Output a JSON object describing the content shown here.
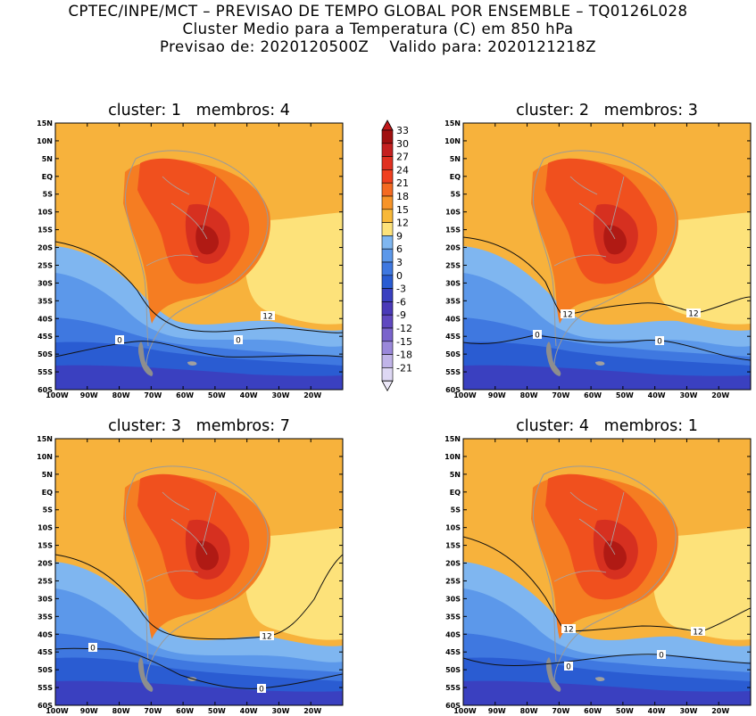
{
  "header": {
    "line1": "CPTEC/INPE/MCT – PREVISAO DE TEMPO GLOBAL POR ENSEMBLE – TQ0126L028",
    "line2": "Cluster Medio para a Temperatura (C) em 850 hPa",
    "line3_prefix": "Previsao de:",
    "line3_forecast": "2020120500Z",
    "line3_valid_prefix": "Valido para:",
    "line3_valid": "2020121218Z"
  },
  "panels": [
    {
      "cluster_label": "cluster:",
      "cluster": "1",
      "members_label": "membros:",
      "members": "4",
      "contour_labels": [
        "12",
        "0",
        "0"
      ]
    },
    {
      "cluster_label": "cluster:",
      "cluster": "2",
      "members_label": "membros:",
      "members": "3",
      "contour_labels": [
        "12",
        "12",
        "0",
        "0"
      ]
    },
    {
      "cluster_label": "cluster:",
      "cluster": "3",
      "members_label": "membros:",
      "members": "7",
      "contour_labels": [
        "12",
        "0",
        "0"
      ]
    },
    {
      "cluster_label": "cluster:",
      "cluster": "4",
      "members_label": "membros:",
      "members": "1",
      "contour_labels": [
        "12",
        "12",
        "0",
        "0"
      ]
    }
  ],
  "axes": {
    "lat_ticks": [
      "15N",
      "10N",
      "5N",
      "EQ",
      "5S",
      "10S",
      "15S",
      "20S",
      "25S",
      "30S",
      "35S",
      "40S",
      "45S",
      "50S",
      "55S",
      "60S"
    ],
    "lon_ticks": [
      "100W",
      "90W",
      "80W",
      "70W",
      "60W",
      "50W",
      "40W",
      "30W",
      "20W"
    ]
  },
  "colorbar": {
    "labels": [
      "33",
      "30",
      "27",
      "24",
      "21",
      "18",
      "15",
      "12",
      "9",
      "6",
      "3",
      "0",
      "-3",
      "-6",
      "-9",
      "-12",
      "-15",
      "-18",
      "-21"
    ],
    "colors": [
      "#a01010",
      "#c42020",
      "#e03020",
      "#f04020",
      "#f46a22",
      "#f79428",
      "#f8b838",
      "#fde27a",
      "#7fb6f0",
      "#5c98ea",
      "#3f78e0",
      "#2a5cd2",
      "#3a40c0",
      "#4a3ab8",
      "#6048c0",
      "#7a64cc",
      "#9a88da",
      "#c0b4e8",
      "#ded8f4"
    ],
    "top_color": "#c0181a",
    "bottom_color": "#ece8f8"
  }
}
